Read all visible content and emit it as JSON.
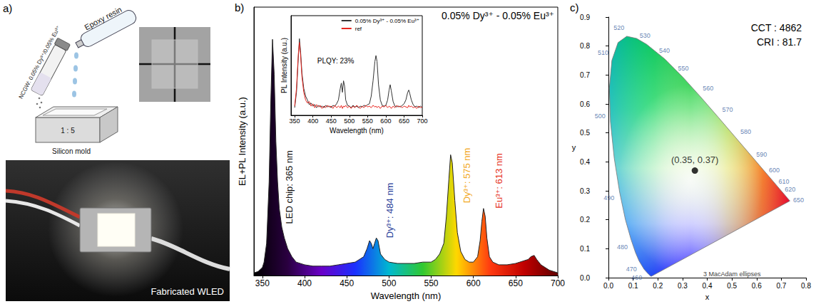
{
  "figure": {
    "panel_a": {
      "panel_label": "a)",
      "vial_label": "NCGW: 0.05% Dy³⁺/0.05% Eu³⁺",
      "tube_label": "Epoxy resin",
      "mold_ratio": "1 : 5",
      "mold_label": "Silicon mold",
      "photo_caption": "Fabricated WLED"
    }
  },
  "chart_data": [
    {
      "panel_label": "b)",
      "type": "line",
      "title": "0.05% Dy³⁺ - 0.05% Eu³⁺",
      "x_label": "Wavelength (nm)",
      "y_label": "EL+PL Intensity (a.u.)",
      "x": [
        340,
        345,
        350,
        352,
        355,
        358,
        360,
        362,
        364,
        366,
        368,
        370,
        373,
        376,
        380,
        385,
        390,
        400,
        410,
        420,
        430,
        440,
        450,
        460,
        465,
        470,
        474,
        477,
        479,
        481,
        483,
        485,
        487,
        490,
        495,
        500,
        510,
        520,
        530,
        540,
        550,
        555,
        560,
        565,
        568,
        571,
        573,
        575,
        578,
        581,
        585,
        590,
        595,
        600,
        605,
        608,
        610,
        612,
        614,
        616,
        619,
        623,
        630,
        640,
        650,
        655,
        660,
        665,
        668,
        672,
        675,
        680,
        690,
        700
      ],
      "series": [
        {
          "color": "#222222",
          "values": [
            0.01,
            0.015,
            0.03,
            0.05,
            0.12,
            0.35,
            0.65,
            0.88,
            0.75,
            0.5,
            0.35,
            0.25,
            0.18,
            0.14,
            0.1,
            0.07,
            0.05,
            0.04,
            0.035,
            0.035,
            0.035,
            0.04,
            0.045,
            0.05,
            0.06,
            0.07,
            0.1,
            0.13,
            0.12,
            0.1,
            0.12,
            0.14,
            0.13,
            0.08,
            0.06,
            0.05,
            0.045,
            0.045,
            0.045,
            0.05,
            0.05,
            0.06,
            0.08,
            0.12,
            0.22,
            0.36,
            0.45,
            0.42,
            0.28,
            0.16,
            0.09,
            0.06,
            0.05,
            0.05,
            0.07,
            0.13,
            0.2,
            0.25,
            0.22,
            0.14,
            0.07,
            0.05,
            0.04,
            0.04,
            0.045,
            0.05,
            0.055,
            0.06,
            0.07,
            0.075,
            0.06,
            0.04,
            0.02,
            0.01
          ]
        }
      ],
      "xlim": [
        340,
        700
      ],
      "xticks": [
        350,
        400,
        450,
        500,
        550,
        600,
        650,
        700
      ],
      "ylim": [
        0,
        1
      ],
      "tick_labels": "x",
      "grid": false,
      "annotations": [
        {
          "text": "LED chip: 365 nm",
          "x": 365,
          "color": "#111111"
        },
        {
          "text": "Dy³⁺: 484 nm",
          "x": 484,
          "color": "#1f3c98"
        },
        {
          "text": "Dy³⁺: 575 nm",
          "x": 575,
          "color": "#f2a71b"
        },
        {
          "text": "Eu³⁺: 613 nm",
          "x": 613,
          "color": "#e6321e"
        }
      ],
      "inset": {
        "type": "line",
        "x_label": "Wavelength (nm)",
        "y_label": "PL Intensity (a.u.)",
        "x": [
          350,
          355,
          360,
          363,
          366,
          370,
          375,
          380,
          385,
          390,
          395,
          400,
          405,
          410,
          415,
          420,
          425,
          430,
          435,
          440,
          445,
          450,
          455,
          460,
          465,
          470,
          475,
          478,
          481,
          484,
          487,
          490,
          495,
          500,
          505,
          510,
          515,
          520,
          525,
          530,
          535,
          540,
          545,
          550,
          555,
          560,
          565,
          570,
          573,
          576,
          580,
          585,
          590,
          595,
          600,
          605,
          609,
          612,
          615,
          620,
          625,
          630,
          635,
          640,
          645,
          650,
          655,
          660,
          663,
          666,
          670,
          675,
          680,
          685,
          690,
          695,
          700
        ],
        "series": [
          {
            "name": "0.05% Dy³⁺ - 0.05% Eu³⁺",
            "color": "#333333",
            "values": [
              0.1,
              0.3,
              0.75,
              1.0,
              0.85,
              0.55,
              0.35,
              0.25,
              0.2,
              0.14,
              0.16,
              0.12,
              0.14,
              0.1,
              0.13,
              0.11,
              0.12,
              0.1,
              0.13,
              0.11,
              0.12,
              0.1,
              0.13,
              0.12,
              0.15,
              0.2,
              0.35,
              0.42,
              0.3,
              0.45,
              0.38,
              0.2,
              0.13,
              0.12,
              0.1,
              0.13,
              0.11,
              0.12,
              0.1,
              0.12,
              0.11,
              0.13,
              0.12,
              0.14,
              0.15,
              0.25,
              0.45,
              0.7,
              0.78,
              0.7,
              0.4,
              0.2,
              0.13,
              0.12,
              0.13,
              0.2,
              0.33,
              0.4,
              0.32,
              0.18,
              0.12,
              0.11,
              0.12,
              0.11,
              0.13,
              0.15,
              0.2,
              0.3,
              0.33,
              0.28,
              0.2,
              0.14,
              0.11,
              0.12,
              0.1,
              0.12,
              0.1
            ]
          },
          {
            "name": "ref",
            "color": "#e8251f",
            "values": [
              0.12,
              0.35,
              0.8,
              0.95,
              0.8,
              0.5,
              0.3,
              0.2,
              0.16,
              0.18,
              0.12,
              0.15,
              0.1,
              0.14,
              0.11,
              0.13,
              0.09,
              0.12,
              0.1,
              0.13,
              0.11,
              0.12,
              0.09,
              0.13,
              0.1,
              0.12,
              0.1,
              0.13,
              0.09,
              0.12,
              0.11,
              0.13,
              0.1,
              0.12,
              0.09,
              0.12,
              0.1,
              0.13,
              0.11,
              0.09,
              0.12,
              0.1,
              0.13,
              0.11,
              0.12,
              0.1,
              0.13,
              0.11,
              0.12,
              0.1,
              0.12,
              0.09,
              0.12,
              0.11,
              0.13,
              0.1,
              0.12,
              0.11,
              0.09,
              0.12,
              0.1,
              0.13,
              0.11,
              0.12,
              0.1,
              0.12,
              0.11,
              0.1,
              0.13,
              0.11,
              0.12,
              0.1,
              0.11,
              0.09,
              0.12,
              0.1,
              0.11
            ]
          }
        ],
        "xlim": [
          340,
          700
        ],
        "xticks": [
          350,
          400,
          450,
          500,
          550,
          600,
          650,
          700
        ],
        "ylim": [
          0,
          1.3
        ],
        "tick_labels": "x",
        "grid": false,
        "legend": "upper right",
        "annotations": [
          {
            "text": "PLQY: 23%"
          }
        ]
      }
    },
    {
      "panel_label": "c)",
      "type": "scatter",
      "x_label": "x",
      "y_label": "y",
      "xlim": [
        0,
        0.8
      ],
      "xticks": [
        {
          "value": 0,
          "label": "0.0"
        },
        0.1,
        0.2,
        0.3,
        0.4,
        0.5,
        0.6,
        0.7,
        0.8
      ],
      "ylim": [
        0,
        0.9
      ],
      "yticks": [
        {
          "value": 0,
          "label": "0.0"
        },
        0.1,
        0.2,
        0.3,
        0.4,
        0.5,
        0.6,
        0.7,
        0.8,
        0.9
      ],
      "tick_labels": true,
      "grid": false,
      "locus": {
        "x": [
          0.1741,
          0.1714,
          0.1644,
          0.1566,
          0.144,
          0.1241,
          0.1096,
          0.0913,
          0.0687,
          0.0454,
          0.0235,
          0.0082,
          0.0039,
          0.0139,
          0.0389,
          0.0743,
          0.1142,
          0.1547,
          0.2296,
          0.3016,
          0.3731,
          0.4441,
          0.5125,
          0.5752,
          0.627,
          0.6658,
          0.6915,
          0.7079,
          0.726,
          0.7347
        ],
        "y": [
          0.005,
          0.0051,
          0.0109,
          0.0177,
          0.0297,
          0.0578,
          0.0868,
          0.1327,
          0.2007,
          0.295,
          0.4127,
          0.5384,
          0.6548,
          0.7502,
          0.812,
          0.8338,
          0.8262,
          0.8059,
          0.7543,
          0.6923,
          0.6245,
          0.5547,
          0.4866,
          0.4242,
          0.3725,
          0.334,
          0.3083,
          0.292,
          0.274,
          0.2653
        ],
        "value_labels": [
          null,
          null,
          null,
          null,
          "460",
          "470",
          null,
          "480",
          null,
          "490",
          null,
          "500",
          null,
          "510",
          null,
          "520",
          null,
          "530",
          "540",
          "550",
          "560",
          "570",
          "580",
          "590",
          "600",
          "610",
          "620",
          null,
          "650",
          null
        ],
        "color": "#3a5fa0"
      },
      "points": {
        "x": [
          0.35
        ],
        "y": [
          0.37
        ],
        "value_labels": [
          "(0.35, 0.37)"
        ],
        "color": "#000000",
        "marker": "circle"
      },
      "annotations": [
        {
          "text": "CCT : 4862"
        },
        {
          "text": "CRI : 81.7"
        },
        {
          "text": "3 MacAdam ellipses"
        }
      ]
    }
  ]
}
